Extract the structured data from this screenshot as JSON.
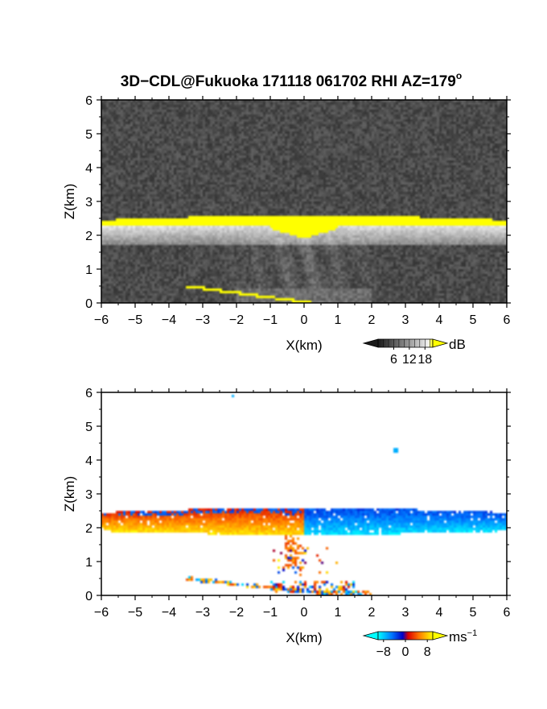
{
  "figure": {
    "title": "3D−CDL@Fukuoka 171118 061702 RHI AZ=179",
    "title_superscript": "o"
  },
  "chart_data": [
    {
      "type": "heatmap",
      "quantity": "reflectivity",
      "xlabel": "X(km)",
      "ylabel": "Z(km)",
      "xlim": [
        -6,
        6
      ],
      "ylim": [
        0,
        6
      ],
      "xticks": [
        "−6",
        "−5",
        "−4",
        "−3",
        "−2",
        "−1",
        "0",
        "1",
        "2",
        "3",
        "4",
        "5",
        "6"
      ],
      "yticks": [
        "0",
        "1",
        "2",
        "3",
        "4",
        "5",
        "6"
      ],
      "colorbar": {
        "unit": "dB",
        "ticks": [
          "6",
          "12",
          "18"
        ],
        "range": [
          0,
          21
        ]
      },
      "features": {
        "noise_floor_db": 5,
        "bright_layer": {
          "x": [
            -6,
            6
          ],
          "z_top": 2.55,
          "z_bottom": 2.3,
          "db": 21
        },
        "central_bright_patch": {
          "x": [
            -1.0,
            1.0
          ],
          "z": [
            1.9,
            2.6
          ],
          "db": 21
        },
        "virga_region": {
          "x": [
            -6,
            6
          ],
          "z": [
            1.7,
            2.3
          ],
          "db": [
            10,
            18
          ]
        },
        "surface_return": {
          "x": [
            -3.5,
            0.2
          ],
          "z_start": 0.5,
          "z_end": 0.0,
          "db": 21
        }
      }
    },
    {
      "type": "heatmap",
      "quantity": "doppler_velocity",
      "xlabel": "X(km)",
      "ylabel": "Z(km)",
      "xlim": [
        -6,
        6
      ],
      "ylim": [
        0,
        6
      ],
      "xticks": [
        "−6",
        "−5",
        "−4",
        "−3",
        "−2",
        "−1",
        "0",
        "1",
        "2",
        "3",
        "4",
        "5",
        "6"
      ],
      "yticks": [
        "0",
        "1",
        "2",
        "3",
        "4",
        "5",
        "6"
      ],
      "colorbar": {
        "unit": "ms",
        "unit_superscript": "−1",
        "ticks": [
          "−8",
          "0",
          "8"
        ],
        "range": [
          -10,
          10
        ]
      },
      "features": {
        "layer": {
          "x": [
            -6,
            6
          ],
          "z": [
            1.75,
            2.55
          ]
        },
        "left_velocity_ms": [
          2,
          9
        ],
        "right_velocity_ms": [
          -9,
          -3
        ],
        "layer_top_velocity_ms": -4,
        "fall_streak": {
          "x": [
            -0.6,
            0.0
          ],
          "z": [
            0.8,
            1.8
          ],
          "velocity_ms": 5
        },
        "surface_return": {
          "x": [
            -3.5,
            2.0
          ],
          "z": [
            0.05,
            0.5
          ],
          "velocity_ms": [
            -9,
            9
          ]
        },
        "isolated_points": [
          {
            "x": -2.1,
            "z": 5.9,
            "velocity_ms": -7
          },
          {
            "x": 2.7,
            "z": 4.3,
            "velocity_ms": -7
          }
        ]
      }
    }
  ]
}
